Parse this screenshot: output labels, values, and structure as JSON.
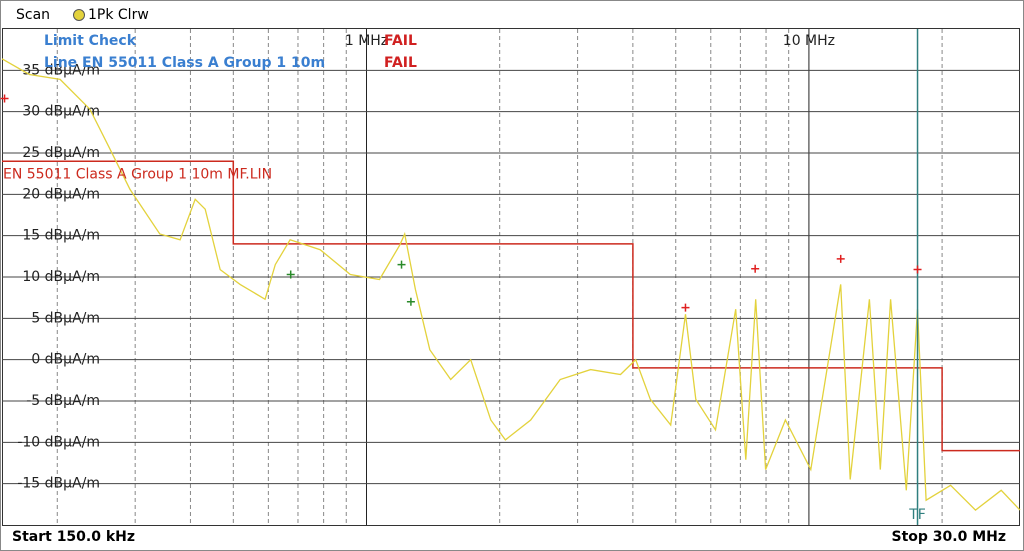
{
  "chart_data": {
    "type": "line",
    "title": "Scan",
    "xlog": true,
    "xlim": [
      0.15,
      30
    ],
    "xticks": [
      {
        "value": 1,
        "label": "1 MHz"
      },
      {
        "value": 10,
        "label": "10 MHz"
      }
    ],
    "ylim": [
      -20,
      40
    ],
    "yticks": [
      {
        "value": 35,
        "label": "35 dBµA/m"
      },
      {
        "value": 30,
        "label": "30 dBµA/m"
      },
      {
        "value": 25,
        "label": "25 dBµA/m"
      },
      {
        "value": 20,
        "label": "20 dBµA/m"
      },
      {
        "value": 15,
        "label": "15 dBµA/m"
      },
      {
        "value": 10,
        "label": "10 dBµA/m"
      },
      {
        "value": 5,
        "label": "5 dBµA/m"
      },
      {
        "value": 0,
        "label": "0 dBµA/m"
      },
      {
        "value": -5,
        "label": "-5 dBµA/m"
      },
      {
        "value": -10,
        "label": "-10 dBµA/m"
      },
      {
        "value": -15,
        "label": "-15 dBµA/m"
      }
    ],
    "grid": true,
    "start_label": "Start 150.0 kHz",
    "stop_label": "Stop 30.0 MHz",
    "limit_check": {
      "title": "Limit Check",
      "result": "FAIL",
      "line": "Line EN 55011 Class A Group 1 10m",
      "line_result": "FAIL"
    },
    "series": [
      {
        "name": "1Pk Clrw",
        "color": "#e3d23c",
        "x": [
          0.15,
          0.173,
          0.203,
          0.237,
          0.263,
          0.292,
          0.341,
          0.379,
          0.41,
          0.432,
          0.467,
          0.518,
          0.59,
          0.622,
          0.672,
          0.786,
          0.919,
          1.07,
          1.19,
          1.22,
          1.29,
          1.39,
          1.55,
          1.72,
          1.91,
          2.06,
          2.35,
          2.74,
          3.21,
          3.75,
          4.06,
          4.38,
          4.87,
          5.26,
          5.55,
          6.15,
          6.83,
          7.2,
          7.58,
          7.98,
          8.85,
          10.1,
          11.8,
          12.4,
          13.7,
          14.5,
          15.3,
          16.6,
          17.6,
          18.4,
          20.9,
          23.8,
          27.2,
          30.0
        ],
        "values": [
          36.4,
          34.5,
          33.9,
          30.3,
          25.5,
          20.6,
          15.2,
          14.5,
          19.4,
          18.2,
          10.9,
          9.1,
          7.3,
          11.5,
          14.5,
          13.3,
          10.3,
          9.7,
          13.9,
          15.2,
          8.5,
          1.2,
          -2.4,
          0,
          -7.3,
          -9.7,
          -7.3,
          -2.4,
          -1.2,
          -1.8,
          0,
          -4.8,
          -7.9,
          5.5,
          -4.8,
          -8.5,
          6.1,
          -12.1,
          7.3,
          -13.3,
          -7.3,
          -13.3,
          9.1,
          -14.5,
          7.3,
          -13.3,
          7.3,
          -15.8,
          6.1,
          -17.0,
          -15.2,
          -18.2,
          -15.8,
          -18.2
        ]
      },
      {
        "name": "EN 55011 Class A Group 1 10m MF.LIN",
        "color": "#cc2a1e",
        "x": [
          0.15,
          0.5,
          0.5,
          4,
          4,
          20,
          20,
          30
        ],
        "values": [
          24,
          24,
          14,
          14,
          -1,
          -1,
          -11,
          -11
        ]
      }
    ],
    "peak_markers": {
      "color": "#e02020",
      "x": [
        0.152,
        5.26,
        7.56,
        11.8,
        17.6
      ],
      "values": [
        31.6,
        6.3,
        11.0,
        12.2,
        10.9
      ]
    },
    "sub_markers": {
      "color": "#2a8a2a",
      "x": [
        0.674,
        1.2,
        1.26
      ],
      "values": [
        10.3,
        11.5,
        7.0
      ]
    },
    "tf_marker": {
      "label": "TF",
      "x": 17.6,
      "color": "#2f7f7f"
    }
  }
}
